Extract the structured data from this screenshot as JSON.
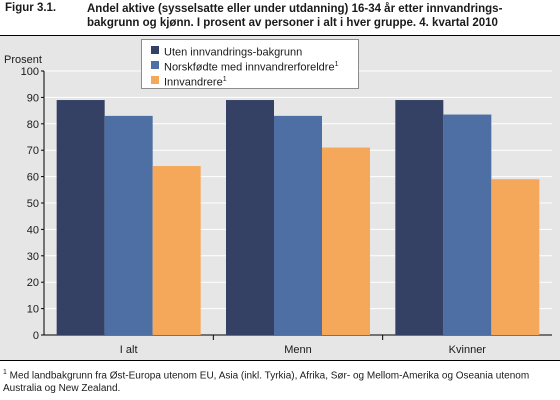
{
  "figure": {
    "label": "Figur 3.1.",
    "title": "Andel aktive (sysselsatte eller under utdanning) 16-34 år etter innvandrings-bakgrunn og kjønn. I prosent av personer i alt i hver gruppe. 4. kvartal 2010"
  },
  "footnote": {
    "marker": "1",
    "text": " Med landbakgrunn fra Øst-Europa utenom EU, Asia (inkl. Tyrkia), Afrika, Sør- og Mellom-Amerika og Oseania utenom Australia og New Zealand."
  },
  "colors": {
    "series1": "#344164",
    "series2": "#4e6fa3",
    "series3": "#f5a85a",
    "plot_background": "#e6e6e6",
    "grid": "#ffffff"
  },
  "chart_data": {
    "type": "bar",
    "title": "",
    "xlabel": "",
    "ylabel": "Prosent",
    "ylim": [
      0,
      100
    ],
    "yticks": [
      0,
      10,
      20,
      30,
      40,
      50,
      60,
      70,
      80,
      90,
      100
    ],
    "grid": true,
    "legend_position": "top-center",
    "categories": [
      "I alt",
      "Menn",
      "Kvinner"
    ],
    "series": [
      {
        "name": "Uten innvandrings-bakgrunn",
        "superscript": "",
        "values": [
          89,
          89,
          89
        ]
      },
      {
        "name": "Norskfødte med innvandrerforeldre",
        "superscript": "1",
        "values": [
          83,
          83,
          83.5
        ]
      },
      {
        "name": "Innvandrere",
        "superscript": "1",
        "values": [
          64,
          71,
          59
        ]
      }
    ]
  }
}
